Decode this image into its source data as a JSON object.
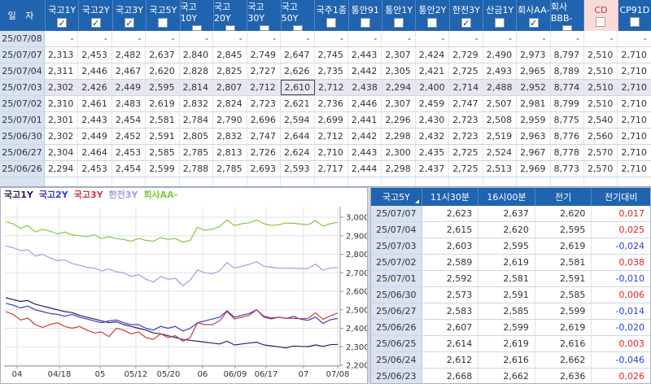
{
  "colors": {
    "header_blue": "#2063ae",
    "pink_col": "#f9dcda",
    "date_col": "#d7e3f0",
    "up_red": "#e02222",
    "down_blue": "#2244cc",
    "grid_line": "#e2e2ea",
    "axis_line": "#999999"
  },
  "top_table": {
    "date_header": "일 자",
    "columns": [
      {
        "label": "국고1Y",
        "checked": true,
        "pink": false
      },
      {
        "label": "국고2Y",
        "checked": true,
        "pink": false
      },
      {
        "label": "국고3Y",
        "checked": true,
        "pink": false
      },
      {
        "label": "국고5Y",
        "checked": false,
        "pink": false
      },
      {
        "label": "국고10Y",
        "checked": false,
        "pink": false
      },
      {
        "label": "국고20Y",
        "checked": false,
        "pink": false
      },
      {
        "label": "국고30Y",
        "checked": false,
        "pink": false
      },
      {
        "label": "국고50Y",
        "checked": false,
        "pink": false
      },
      {
        "label": "국주1종",
        "checked": false,
        "pink": false
      },
      {
        "label": "통안91",
        "checked": false,
        "pink": false
      },
      {
        "label": "통안1Y",
        "checked": false,
        "pink": false
      },
      {
        "label": "통안2Y",
        "checked": false,
        "pink": false
      },
      {
        "label": "한전3Y",
        "checked": true,
        "pink": false
      },
      {
        "label": "산금1Y",
        "checked": false,
        "pink": false
      },
      {
        "label": "회사AA-",
        "checked": true,
        "pink": false
      },
      {
        "label": "회사BBB-",
        "checked": false,
        "pink": false
      },
      {
        "label": "CD",
        "checked": false,
        "pink": true
      },
      {
        "label": "CP91D",
        "checked": false,
        "pink": false
      }
    ],
    "rows": [
      {
        "date": "25/07/08",
        "values": [
          "-",
          "-",
          "-",
          "-",
          "-",
          "-",
          "-",
          "-",
          "-",
          "-",
          "-",
          "-",
          "-",
          "-",
          "-",
          "-",
          "-",
          "-"
        ]
      },
      {
        "date": "25/07/07",
        "values": [
          "2,313",
          "2,453",
          "2,482",
          "2,637",
          "2,840",
          "2,845",
          "2,749",
          "2,647",
          "2,745",
          "2,443",
          "2,307",
          "2,424",
          "2,729",
          "2,490",
          "2,973",
          "8,797",
          "2,510",
          "2,710"
        ]
      },
      {
        "date": "25/07/04",
        "values": [
          "2,311",
          "2,446",
          "2,467",
          "2,620",
          "2,828",
          "2,825",
          "2,727",
          "2,626",
          "2,735",
          "2,442",
          "2,305",
          "2,421",
          "2,725",
          "2,493",
          "2,965",
          "8,789",
          "2,510",
          "2,710"
        ]
      },
      {
        "date": "25/07/03",
        "values": [
          "2,302",
          "2,426",
          "2,449",
          "2,595",
          "2,814",
          "2,807",
          "2,712",
          "2,610",
          "2,712",
          "2,438",
          "2,294",
          "2,400",
          "2,714",
          "2,488",
          "2,952",
          "8,774",
          "2,510",
          "2,710"
        ]
      },
      {
        "date": "25/07/02",
        "values": [
          "2,310",
          "2,461",
          "2,483",
          "2,619",
          "2,832",
          "2,824",
          "2,723",
          "2,621",
          "2,736",
          "2,446",
          "2,307",
          "2,459",
          "2,747",
          "2,507",
          "2,981",
          "8,799",
          "2,510",
          "2,710"
        ]
      },
      {
        "date": "25/07/01",
        "values": [
          "2,301",
          "2,443",
          "2,454",
          "2,581",
          "2,784",
          "2,790",
          "2,696",
          "2,594",
          "2,699",
          "2,441",
          "2,296",
          "2,430",
          "2,723",
          "2,508",
          "2,959",
          "8,775",
          "2,540",
          "2,710"
        ]
      },
      {
        "date": "25/06/30",
        "values": [
          "2,302",
          "2,449",
          "2,452",
          "2,591",
          "2,805",
          "2,832",
          "2,747",
          "2,644",
          "2,712",
          "2,442",
          "2,298",
          "2,432",
          "2,723",
          "2,519",
          "2,963",
          "8,776",
          "2,560",
          "2,710"
        ]
      },
      {
        "date": "25/06/27",
        "values": [
          "2,304",
          "2,464",
          "2,453",
          "2,585",
          "2,785",
          "2,813",
          "2,726",
          "2,624",
          "2,710",
          "2,443",
          "2,300",
          "2,435",
          "2,725",
          "2,524",
          "2,967",
          "8,778",
          "2,570",
          "2,710"
        ]
      },
      {
        "date": "25/06/26",
        "values": [
          "2,294",
          "2,453",
          "2,454",
          "2,599",
          "2,788",
          "2,785",
          "2,693",
          "2,593",
          "2,717",
          "2,444",
          "2,298",
          "2,437",
          "2,725",
          "2,513",
          "2,969",
          "8,773",
          "2,570",
          "2,710"
        ]
      }
    ],
    "selected_cell": {
      "row_date": "25/07/03",
      "col_index": 7,
      "value": "2,610"
    }
  },
  "detail_table": {
    "headers": [
      "국고5Y",
      "11시30분",
      "16시00분",
      "전기",
      "전기대비"
    ],
    "rows": [
      {
        "date": "25/07/07",
        "t1130": "2,623",
        "t1600": "2,637",
        "prev": "2,620",
        "change": "0,017",
        "direction": "up"
      },
      {
        "date": "25/07/04",
        "t1130": "2,615",
        "t1600": "2,620",
        "prev": "2,595",
        "change": "0,025",
        "direction": "up"
      },
      {
        "date": "25/07/03",
        "t1130": "2,603",
        "t1600": "2,595",
        "prev": "2,619",
        "change": "-0,024",
        "direction": "down"
      },
      {
        "date": "25/07/02",
        "t1130": "2,589",
        "t1600": "2,619",
        "prev": "2,581",
        "change": "0,038",
        "direction": "up"
      },
      {
        "date": "25/07/01",
        "t1130": "2,592",
        "t1600": "2,581",
        "prev": "2,591",
        "change": "-0,010",
        "direction": "down"
      },
      {
        "date": "25/06/30",
        "t1130": "2,573",
        "t1600": "2,591",
        "prev": "2,585",
        "change": "0,006",
        "direction": "up"
      },
      {
        "date": "25/06/27",
        "t1130": "2,583",
        "t1600": "2,585",
        "prev": "2,599",
        "change": "-0,014",
        "direction": "down"
      },
      {
        "date": "25/06/26",
        "t1130": "2,607",
        "t1600": "2,599",
        "prev": "2,619",
        "change": "-0,020",
        "direction": "down"
      },
      {
        "date": "25/06/25",
        "t1130": "2,614",
        "t1600": "2,619",
        "prev": "2,616",
        "change": "0,003",
        "direction": "up"
      },
      {
        "date": "25/06/24",
        "t1130": "2,612",
        "t1600": "2,616",
        "prev": "2,662",
        "change": "-0,046",
        "direction": "down"
      },
      {
        "date": "25/06/23",
        "t1130": "2,668",
        "t1600": "2,662",
        "prev": "2,636",
        "change": "0,026",
        "direction": "up"
      }
    ]
  },
  "chart_data": {
    "type": "line",
    "title": "",
    "xlabel": "",
    "ylabel": "",
    "ylim": [
      2200,
      3050
    ],
    "y_ticks": [
      2200,
      2300,
      2400,
      2500,
      2600,
      2700,
      2800,
      2900,
      3000
    ],
    "x_tick_labels": [
      "04",
      "04/18",
      "05",
      "05/12",
      "05/20",
      "06",
      "06/09",
      "06/17",
      "07",
      "07/08"
    ],
    "legend_position": "top-left",
    "grid": true,
    "x": [
      "04/04",
      "04/07",
      "04/08",
      "04/09",
      "04/10",
      "04/11",
      "04/14",
      "04/16",
      "04/17",
      "04/18",
      "04/21",
      "04/22",
      "04/24",
      "04/28",
      "04/30",
      "05/02",
      "05/07",
      "05/09",
      "05/12",
      "05/14",
      "05/16",
      "05/19",
      "05/21",
      "05/23",
      "05/26",
      "05/28",
      "06/02",
      "06/04",
      "06/09",
      "06/11",
      "06/13",
      "06/16",
      "06/17",
      "06/19",
      "06/20",
      "06/23",
      "06/24",
      "06/25",
      "06/26",
      "06/27",
      "06/30",
      "07/01",
      "07/02",
      "07/03",
      "07/04",
      "07/07"
    ],
    "series": [
      {
        "name": "국고1Y",
        "color": "#25255e",
        "values": [
          2.565,
          2.555,
          2.545,
          2.55,
          2.53,
          2.52,
          2.51,
          2.5,
          2.49,
          2.485,
          2.47,
          2.46,
          2.45,
          2.44,
          2.43,
          2.435,
          2.42,
          2.41,
          2.4,
          2.39,
          2.375,
          2.37,
          2.36,
          2.35,
          2.34,
          2.335,
          2.33,
          2.325,
          2.32,
          2.315,
          2.33,
          2.31,
          2.315,
          2.32,
          2.325,
          2.31,
          2.305,
          2.3,
          2.294,
          2.304,
          2.302,
          2.301,
          2.31,
          2.302,
          2.311,
          2.313
        ]
      },
      {
        "name": "국고2Y",
        "color": "#3b3bc4",
        "values": [
          2.535,
          2.525,
          2.51,
          2.52,
          2.5,
          2.49,
          2.48,
          2.475,
          2.465,
          2.475,
          2.46,
          2.45,
          2.44,
          2.43,
          2.44,
          2.445,
          2.43,
          2.42,
          2.42,
          2.4,
          2.39,
          2.41,
          2.4,
          2.41,
          2.385,
          2.4,
          2.43,
          2.44,
          2.45,
          2.46,
          2.495,
          2.46,
          2.47,
          2.48,
          2.5,
          2.465,
          2.455,
          2.46,
          2.453,
          2.464,
          2.449,
          2.443,
          2.461,
          2.426,
          2.446,
          2.453
        ]
      },
      {
        "name": "국고3Y",
        "color": "#cc3b3b",
        "values": [
          2.49,
          2.475,
          2.445,
          2.455,
          2.42,
          2.405,
          2.42,
          2.43,
          2.41,
          2.4,
          2.41,
          2.39,
          2.375,
          2.38,
          2.355,
          2.4,
          2.39,
          2.37,
          2.38,
          2.35,
          2.34,
          2.37,
          2.35,
          2.36,
          2.33,
          2.35,
          2.43,
          2.42,
          2.42,
          2.44,
          2.49,
          2.45,
          2.46,
          2.47,
          2.5,
          2.46,
          2.45,
          2.46,
          2.454,
          2.453,
          2.452,
          2.454,
          2.483,
          2.449,
          2.467,
          2.482
        ]
      },
      {
        "name": "한전3Y",
        "color": "#9e9ee6",
        "values": [
          2.845,
          2.835,
          2.82,
          2.825,
          2.79,
          2.8,
          2.78,
          2.765,
          2.77,
          2.75,
          2.74,
          2.73,
          2.725,
          2.71,
          2.72,
          2.705,
          2.7,
          2.68,
          2.69,
          2.665,
          2.65,
          2.68,
          2.665,
          2.67,
          2.63,
          2.66,
          2.715,
          2.7,
          2.695,
          2.71,
          2.755,
          2.725,
          2.735,
          2.745,
          2.76,
          2.735,
          2.73,
          2.725,
          2.725,
          2.725,
          2.723,
          2.723,
          2.747,
          2.714,
          2.725,
          2.729
        ]
      },
      {
        "name": "회사AA-",
        "color": "#84c643",
        "values": [
          2.975,
          2.965,
          2.94,
          2.955,
          2.92,
          2.935,
          2.925,
          2.91,
          2.92,
          2.905,
          2.9,
          2.895,
          2.905,
          2.885,
          2.895,
          2.885,
          2.88,
          2.87,
          2.885,
          2.875,
          2.87,
          2.89,
          2.88,
          2.885,
          2.865,
          2.875,
          2.945,
          2.93,
          2.935,
          2.95,
          2.985,
          2.955,
          2.965,
          2.97,
          2.985,
          2.965,
          2.955,
          2.96,
          2.969,
          2.967,
          2.963,
          2.959,
          2.981,
          2.952,
          2.965,
          2.973
        ]
      }
    ]
  }
}
